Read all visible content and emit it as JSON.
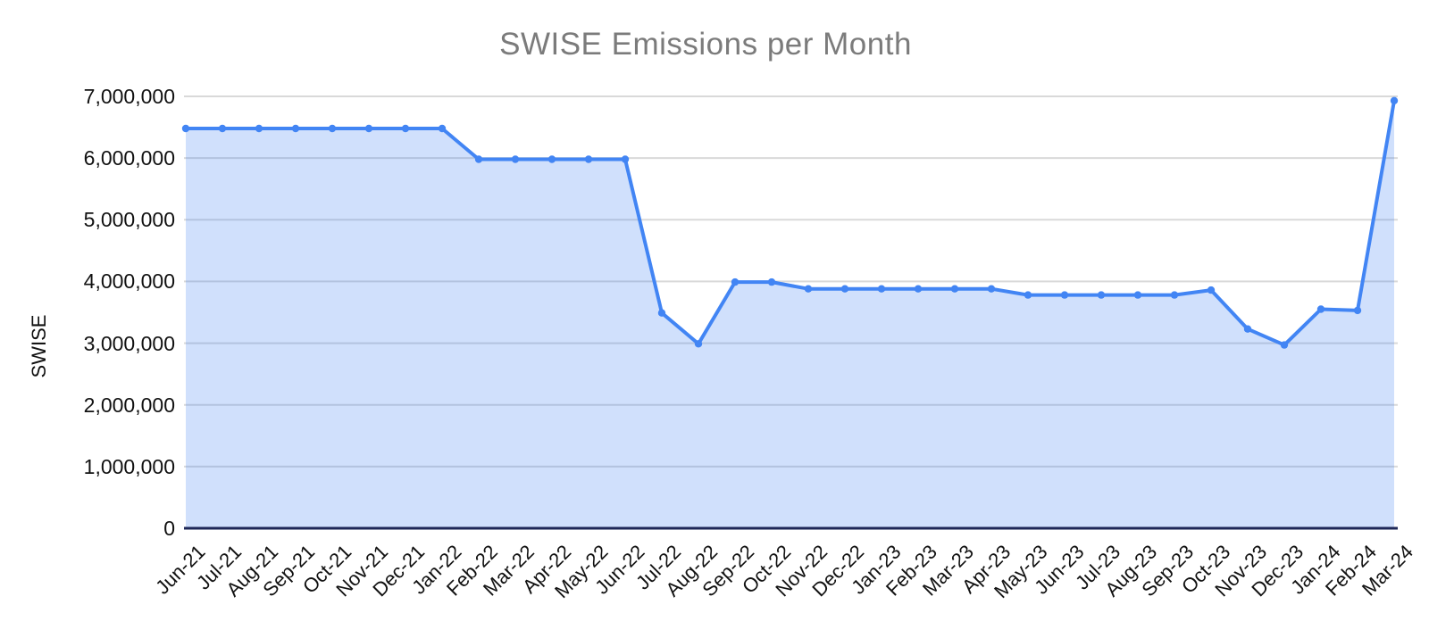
{
  "chart": {
    "title": "SWISE Emissions per Month",
    "y_axis_title": "SWISE"
  },
  "colors": {
    "title_text": "#7b7b7b",
    "axis_label_text": "#111111",
    "gridline": "#d9d9d9",
    "baseline": "#1e2757",
    "line": "#4285f4",
    "fill_rgba": "rgba(66,133,244,0.25)",
    "background": "#ffffff"
  },
  "chart_data": {
    "type": "area",
    "title": "SWISE Emissions per Month",
    "xlabel": "",
    "ylabel": "SWISE",
    "ylim": [
      0,
      7000000
    ],
    "y_tick_step": 1000000,
    "grid": true,
    "legend": "none",
    "y_tick_labels": [
      "0",
      "1,000,000",
      "2,000,000",
      "3,000,000",
      "4,000,000",
      "5,000,000",
      "6,000,000",
      "7,000,000"
    ],
    "categories": [
      "Jun-21",
      "Jul-21",
      "Aug-21",
      "Sep-21",
      "Oct-21",
      "Nov-21",
      "Dec-21",
      "Jan-22",
      "Feb-22",
      "Mar-22",
      "Apr-22",
      "May-22",
      "Jun-22",
      "Jul-22",
      "Aug-22",
      "Sep-22",
      "Oct-22",
      "Nov-22",
      "Dec-22",
      "Jan-23",
      "Feb-23",
      "Mar-23",
      "Apr-23",
      "May-23",
      "Jun-23",
      "Jul-23",
      "Aug-23",
      "Sep-23",
      "Oct-23",
      "Nov-23",
      "Dec-23",
      "Jan-24",
      "Feb-24",
      "Mar-24"
    ],
    "values": [
      6480000,
      6480000,
      6480000,
      6480000,
      6480000,
      6480000,
      6480000,
      6480000,
      5980000,
      5980000,
      5980000,
      5980000,
      5980000,
      3490000,
      2990000,
      3990000,
      3990000,
      3880000,
      3880000,
      3880000,
      3880000,
      3880000,
      3880000,
      3780000,
      3780000,
      3780000,
      3780000,
      3780000,
      3860000,
      3230000,
      2970000,
      3550000,
      3530000,
      6930000
    ]
  }
}
